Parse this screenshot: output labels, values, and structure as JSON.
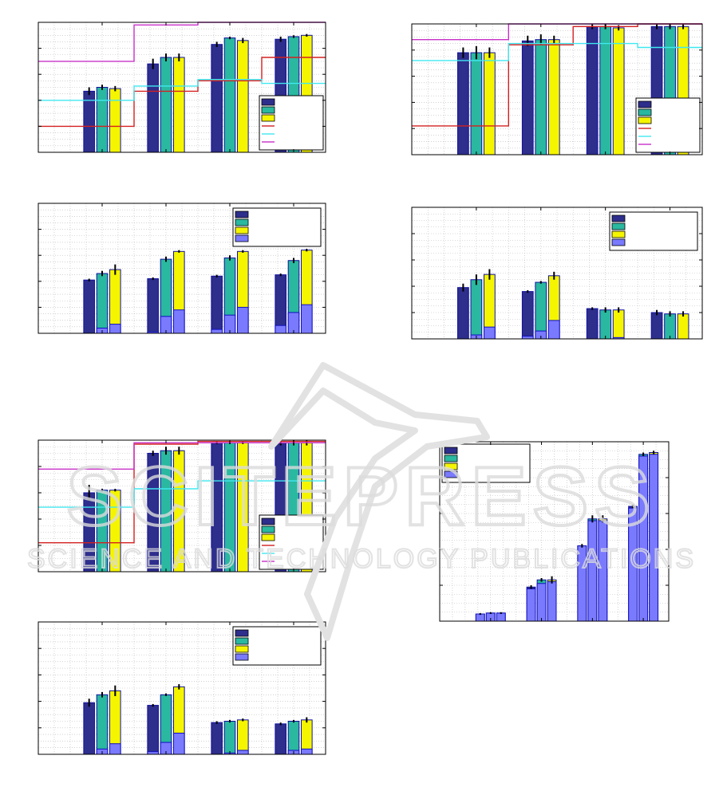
{
  "colors": {
    "dark_blue": "#2e2e8c",
    "teal": "#2ab8a0",
    "yellow": "#f5f500",
    "light_blue": "#7a7aff",
    "red_line": "#d42020",
    "cyan_line": "#40e8f0",
    "magenta_line": "#c830c8",
    "grid": "#b8b8b8",
    "watermark": "#d6d6d6"
  },
  "watermark": {
    "brand": "SCITEPRESS",
    "tagline": "SCIENCE AND TECHNOLOGY PUBLICATIONS"
  },
  "chart_data": [
    {
      "type": "bar",
      "ylim": [
        0,
        1
      ],
      "xlim": [
        0,
        4.5
      ],
      "x": [
        1,
        2,
        3,
        4
      ],
      "series": [
        {
          "values": [
            0.47,
            0.68,
            0.83,
            0.87
          ],
          "err": [
            0.03,
            0.04,
            0.02,
            0.02
          ]
        },
        {
          "values": [
            0.5,
            0.73,
            0.88,
            0.89
          ],
          "err": [
            0.02,
            0.03,
            0.01,
            0.01
          ]
        },
        {
          "values": [
            0.49,
            0.73,
            0.86,
            0.9
          ],
          "err": [
            0.02,
            0.03,
            0.02,
            0.01
          ]
        }
      ],
      "lines": [
        {
          "color": "red_line",
          "steps": [
            [
              0,
              0.2
            ],
            [
              1.5,
              0.2
            ],
            [
              1.5,
              0.47
            ],
            [
              2.5,
              0.47
            ],
            [
              2.5,
              0.55
            ],
            [
              3.5,
              0.55
            ],
            [
              3.5,
              0.73
            ],
            [
              4.5,
              0.73
            ]
          ]
        },
        {
          "color": "cyan_line",
          "steps": [
            [
              0,
              0.4
            ],
            [
              1.5,
              0.4
            ],
            [
              1.5,
              0.51
            ],
            [
              2.5,
              0.51
            ],
            [
              2.5,
              0.56
            ],
            [
              3.5,
              0.56
            ],
            [
              3.5,
              0.53
            ],
            [
              4.5,
              0.53
            ]
          ]
        },
        {
          "color": "magenta_line",
          "steps": [
            [
              0,
              0.7
            ],
            [
              1.5,
              0.7
            ],
            [
              1.5,
              0.98
            ],
            [
              2.5,
              0.98
            ],
            [
              2.5,
              1.0
            ],
            [
              4.5,
              1.0
            ]
          ]
        }
      ],
      "legend": {
        "placement": "bottom-right",
        "entries": 6
      }
    },
    {
      "type": "bar",
      "ylim": [
        0,
        1
      ],
      "xlim": [
        0,
        4.5
      ],
      "x": [
        1,
        2,
        3,
        4
      ],
      "series": [
        {
          "values": [
            0.78,
            0.87,
            0.98,
            0.98
          ],
          "err": [
            0.04,
            0.04,
            0.02,
            0.02
          ]
        },
        {
          "values": [
            0.78,
            0.88,
            0.98,
            0.98
          ],
          "err": [
            0.05,
            0.04,
            0.02,
            0.02
          ]
        },
        {
          "values": [
            0.78,
            0.88,
            0.97,
            0.98
          ],
          "err": [
            0.04,
            0.03,
            0.02,
            0.02
          ]
        }
      ],
      "lines": [
        {
          "color": "red_line",
          "steps": [
            [
              0,
              0.22
            ],
            [
              1.5,
              0.22
            ],
            [
              1.5,
              0.84
            ],
            [
              2.5,
              0.84
            ],
            [
              2.5,
              0.98
            ],
            [
              3.5,
              0.98
            ],
            [
              3.5,
              1.0
            ],
            [
              4.5,
              1.0
            ]
          ]
        },
        {
          "color": "cyan_line",
          "steps": [
            [
              0,
              0.72
            ],
            [
              1.5,
              0.72
            ],
            [
              1.5,
              0.85
            ],
            [
              3.5,
              0.85
            ],
            [
              3.5,
              0.82
            ],
            [
              4.5,
              0.82
            ]
          ]
        },
        {
          "color": "magenta_line",
          "steps": [
            [
              0,
              0.88
            ],
            [
              1.5,
              0.88
            ],
            [
              1.5,
              1.0
            ],
            [
              4.5,
              1.0
            ]
          ]
        }
      ],
      "legend": {
        "placement": "bottom-right",
        "entries": 6
      }
    },
    {
      "type": "bar",
      "ylim": [
        0,
        1
      ],
      "xlim": [
        0,
        4.5
      ],
      "x": [
        1,
        2,
        3,
        4
      ],
      "series": [
        {
          "values": [
            0.41,
            0.42,
            0.44,
            0.45
          ],
          "base": [
            0.0,
            0.01,
            0.03,
            0.06
          ],
          "err": [
            0.01,
            0.01,
            0.01,
            0.01
          ]
        },
        {
          "values": [
            0.46,
            0.57,
            0.58,
            0.56
          ],
          "base": [
            0.04,
            0.13,
            0.14,
            0.16
          ],
          "err": [
            0.02,
            0.02,
            0.02,
            0.02
          ]
        },
        {
          "values": [
            0.49,
            0.63,
            0.63,
            0.64
          ],
          "base": [
            0.07,
            0.18,
            0.2,
            0.22
          ],
          "err": [
            0.04,
            0.01,
            0.01,
            0.01
          ]
        }
      ],
      "legend": {
        "placement": "top-right",
        "entries": 4
      }
    },
    {
      "type": "bar",
      "ylim": [
        0,
        1
      ],
      "xlim": [
        0,
        4.5
      ],
      "x": [
        1,
        2,
        3,
        4
      ],
      "series": [
        {
          "values": [
            0.39,
            0.36,
            0.23,
            0.2
          ],
          "base": [
            0.0,
            0.02,
            0.0,
            0.0
          ],
          "err": [
            0.03,
            0.01,
            0.01,
            0.02
          ]
        },
        {
          "values": [
            0.45,
            0.43,
            0.22,
            0.19
          ],
          "base": [
            0.03,
            0.06,
            0.0,
            0.0
          ],
          "err": [
            0.04,
            0.01,
            0.02,
            0.02
          ]
        },
        {
          "values": [
            0.49,
            0.48,
            0.22,
            0.19
          ],
          "base": [
            0.09,
            0.14,
            0.01,
            0.0
          ],
          "err": [
            0.04,
            0.03,
            0.02,
            0.02
          ]
        }
      ],
      "legend": {
        "placement": "top-right",
        "entries": 4
      }
    },
    {
      "type": "bar",
      "ylim": [
        0,
        1
      ],
      "xlim": [
        0,
        4.5
      ],
      "x": [
        1,
        2,
        3,
        4
      ],
      "series": [
        {
          "values": [
            0.6,
            0.9,
            0.98,
            0.98
          ],
          "err": [
            0.06,
            0.02,
            0.01,
            0.02
          ]
        },
        {
          "values": [
            0.62,
            0.92,
            0.98,
            0.98
          ],
          "err": [
            0.01,
            0.03,
            0.01,
            0.02
          ]
        },
        {
          "values": [
            0.62,
            0.92,
            0.98,
            0.98
          ],
          "err": [
            0.01,
            0.03,
            0.01,
            0.02
          ]
        }
      ],
      "lines": [
        {
          "color": "red_line",
          "steps": [
            [
              0,
              0.22
            ],
            [
              1.5,
              0.22
            ],
            [
              1.5,
              0.97
            ],
            [
              2.5,
              0.97
            ],
            [
              2.5,
              0.99
            ],
            [
              4.5,
              0.99
            ]
          ]
        },
        {
          "color": "cyan_line",
          "steps": [
            [
              0,
              0.49
            ],
            [
              1.5,
              0.49
            ],
            [
              1.5,
              0.63
            ],
            [
              2.5,
              0.63
            ],
            [
              2.5,
              0.69
            ],
            [
              4.5,
              0.69
            ]
          ]
        },
        {
          "color": "magenta_line",
          "steps": [
            [
              0,
              0.78
            ],
            [
              1.5,
              0.78
            ],
            [
              1.5,
              0.98
            ],
            [
              4.5,
              0.98
            ]
          ]
        }
      ],
      "legend": {
        "placement": "bottom-right",
        "entries": 6
      }
    },
    {
      "type": "bar",
      "ylim": [
        0,
        1
      ],
      "xlim": [
        0,
        4.5
      ],
      "x": [
        1,
        2,
        3,
        4
      ],
      "series": [
        {
          "values": [
            0.39,
            0.37,
            0.24,
            0.23
          ],
          "base": [
            0.0,
            0.02,
            0.0,
            0.0
          ],
          "err": [
            0.03,
            0.01,
            0.01,
            0.01
          ]
        },
        {
          "values": [
            0.45,
            0.45,
            0.25,
            0.25
          ],
          "base": [
            0.04,
            0.09,
            0.01,
            0.03
          ],
          "err": [
            0.02,
            0.01,
            0.01,
            0.01
          ]
        },
        {
          "values": [
            0.48,
            0.51,
            0.26,
            0.26
          ],
          "base": [
            0.08,
            0.16,
            0.03,
            0.04
          ],
          "err": [
            0.04,
            0.02,
            0.01,
            0.02
          ]
        }
      ],
      "legend": {
        "placement": "top-right",
        "entries": 4
      }
    },
    {
      "type": "bar",
      "ylim": [
        0,
        1
      ],
      "xlim": [
        0,
        4.5
      ],
      "x": [
        1,
        2,
        3,
        4
      ],
      "series": [
        {
          "values": [
            0.04,
            0.19,
            0.42,
            0.64
          ],
          "base": [
            0.04,
            0.18,
            0.42,
            0.63
          ],
          "err": [
            0.005,
            0.01,
            0.01,
            0.01
          ]
        },
        {
          "values": [
            0.045,
            0.23,
            0.57,
            0.93
          ],
          "base": [
            0.045,
            0.21,
            0.56,
            0.92
          ],
          "err": [
            0.005,
            0.01,
            0.02,
            0.01
          ]
        },
        {
          "values": [
            0.045,
            0.23,
            0.57,
            0.94
          ],
          "base": [
            0.045,
            0.22,
            0.56,
            0.93
          ],
          "err": [
            0.005,
            0.02,
            0.02,
            0.01
          ]
        }
      ],
      "legend": {
        "placement": "top-left",
        "entries": 4
      }
    }
  ]
}
